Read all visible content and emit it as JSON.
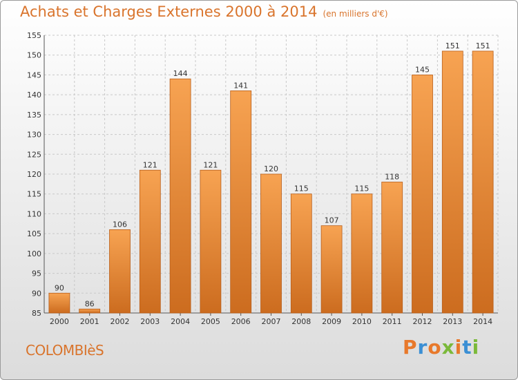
{
  "header": {
    "title": "Achats et Charges Externes 2000 à 2014",
    "subtitle": "(en milliers d'€)"
  },
  "footer": {
    "city": "COLOMBIèS",
    "logo": "Proxiti",
    "logo_colors": [
      "#e8792b",
      "#3b8fd4",
      "#e8792b",
      "#7bb93a",
      "#e8792b",
      "#3b8fd4",
      "#7bb93a"
    ]
  },
  "colors": {
    "bar": "#f0913a",
    "bar_dark": "#c9681d",
    "title": "#d9742c",
    "grid": "#c8c8c8"
  },
  "chart_data": {
    "type": "bar",
    "categories": [
      "2000",
      "2001",
      "2002",
      "2003",
      "2004",
      "2005",
      "2006",
      "2007",
      "2008",
      "2009",
      "2010",
      "2011",
      "2012",
      "2013",
      "2014"
    ],
    "values": [
      90,
      86,
      106,
      121,
      144,
      121,
      141,
      120,
      115,
      107,
      115,
      118,
      145,
      151,
      151
    ],
    "ylim": [
      85,
      155
    ],
    "yticks": [
      85,
      90,
      95,
      100,
      105,
      110,
      115,
      120,
      125,
      130,
      135,
      140,
      145,
      150,
      155
    ],
    "grid": true
  }
}
